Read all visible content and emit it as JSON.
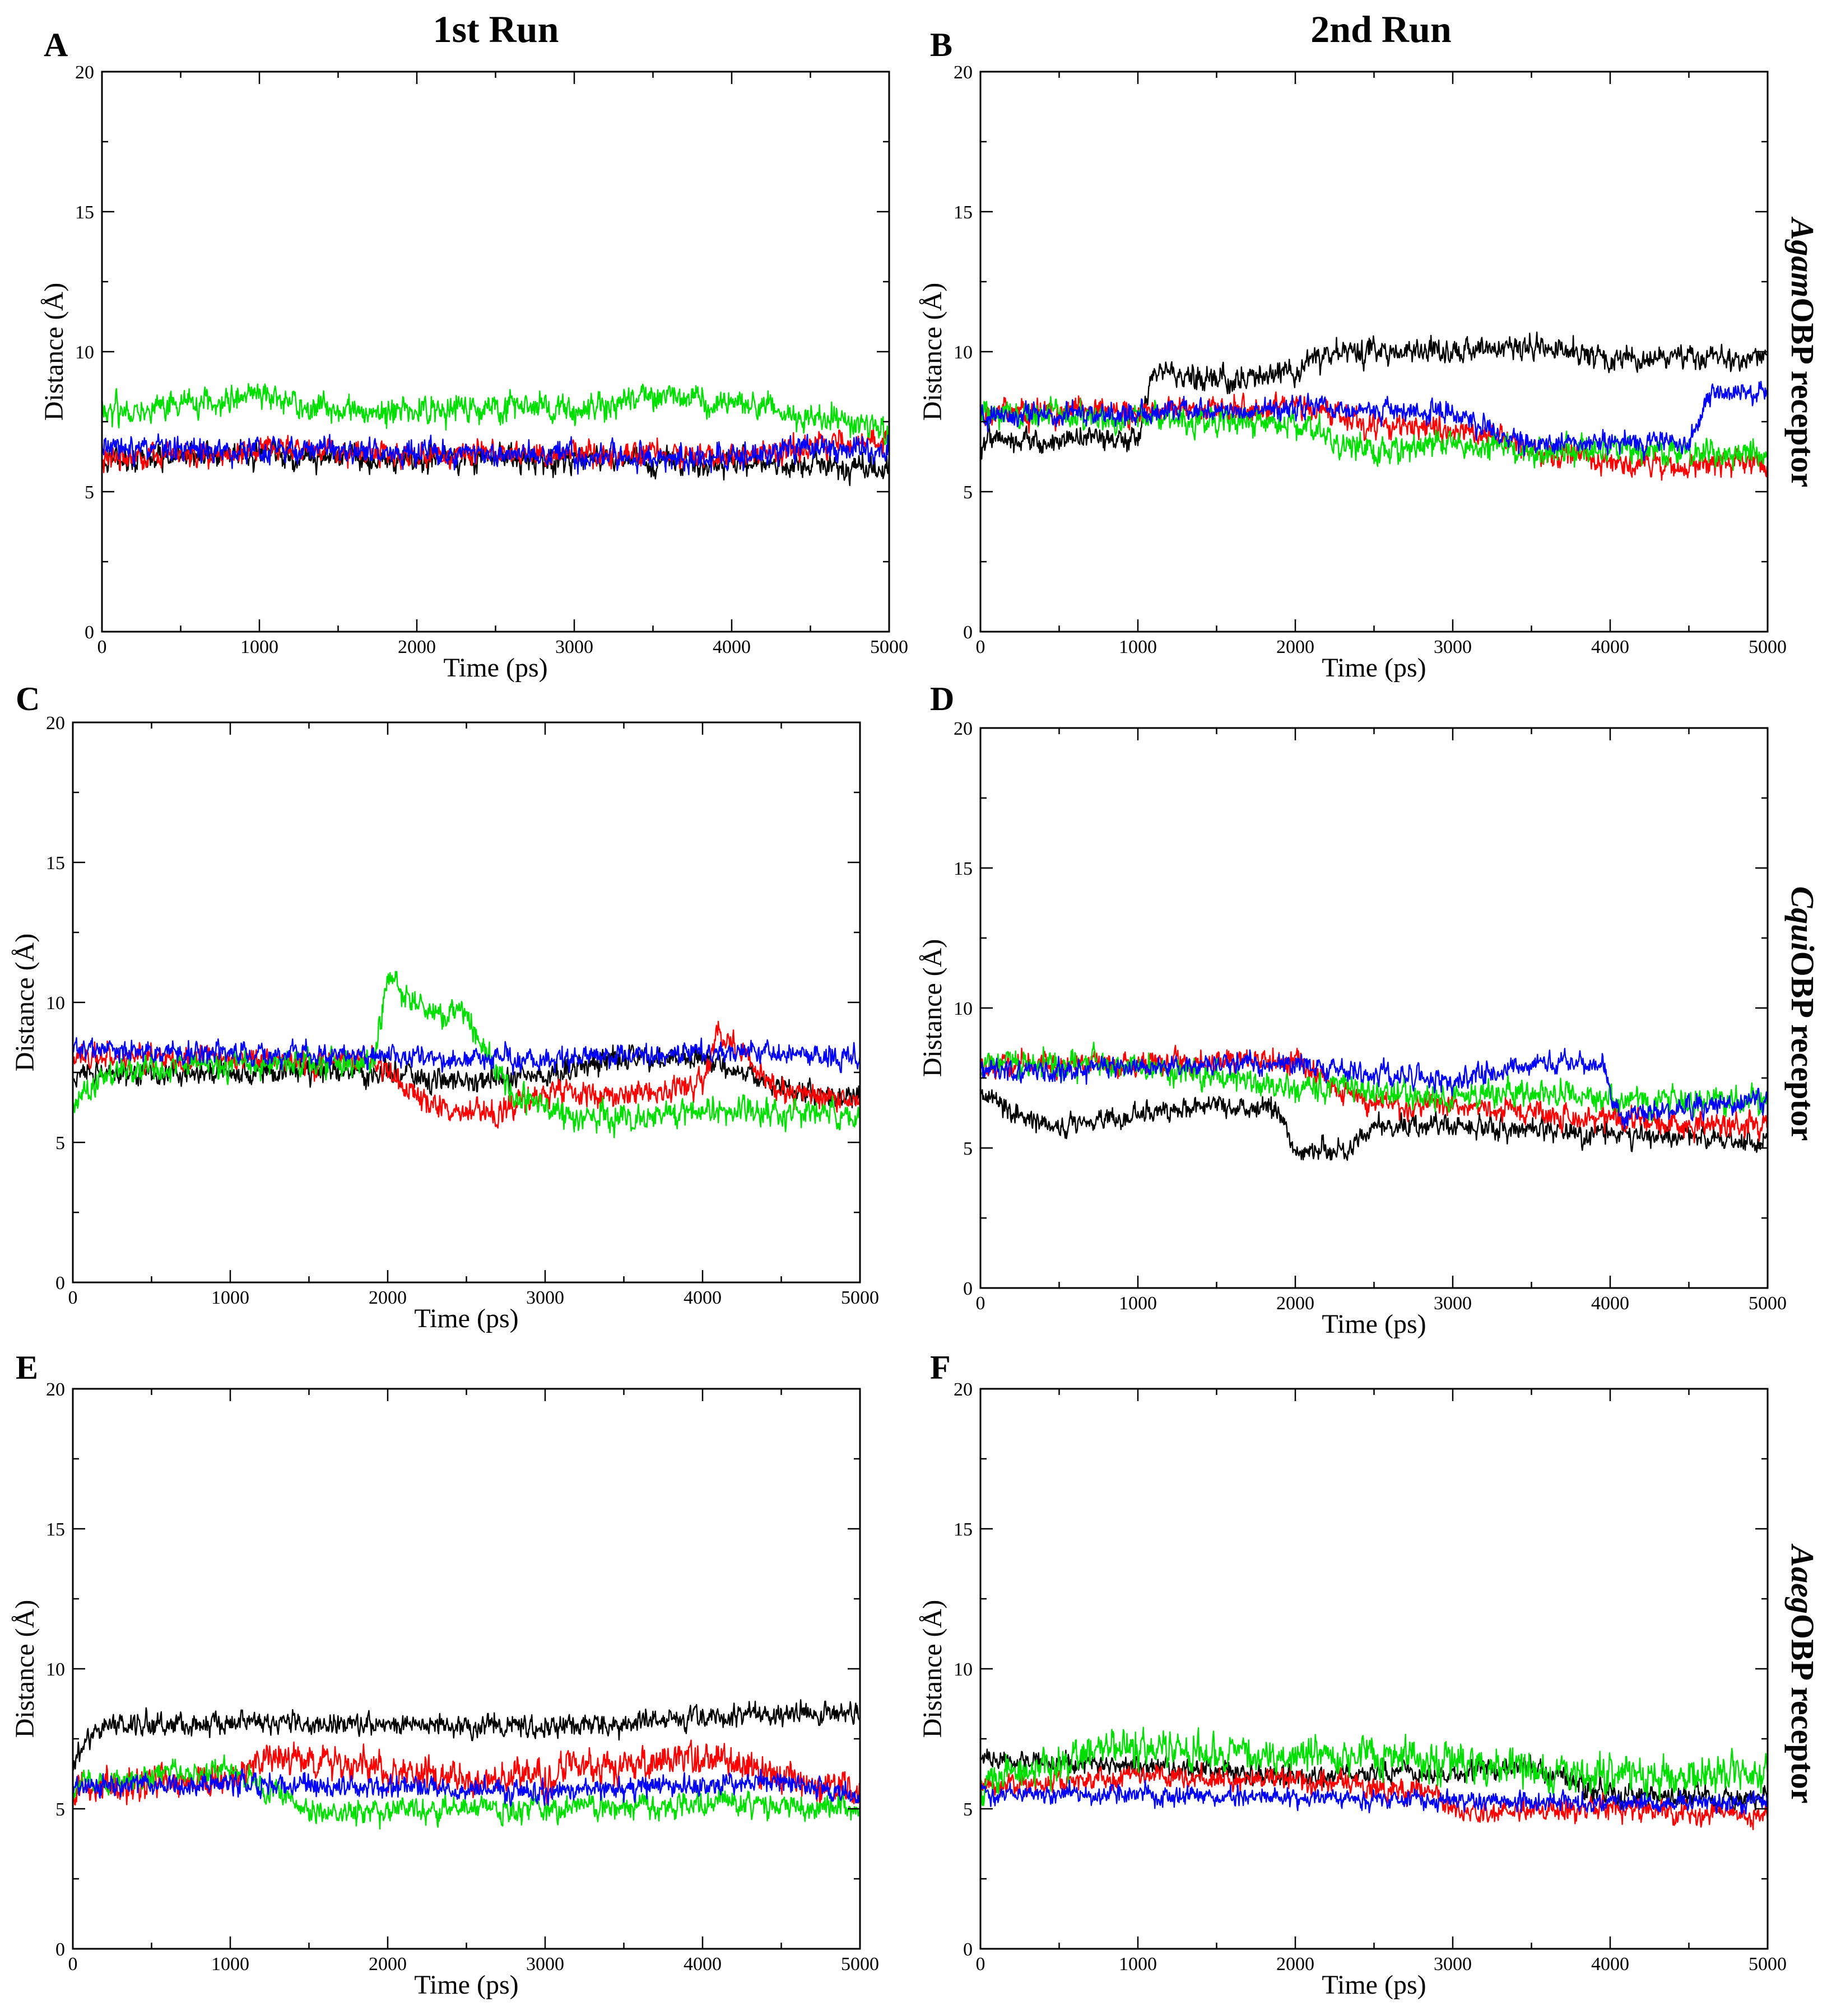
{
  "figure": {
    "col_titles": [
      "1st Run",
      "2nd Run"
    ],
    "row_labels": [
      {
        "italic": "Agam",
        "rest": "OBP receptor"
      },
      {
        "italic": "Cqui",
        "rest": "OBP receptor"
      },
      {
        "italic": "Aaeg",
        "rest": "OBP receptor"
      }
    ],
    "series_colors": {
      "black": "#000000",
      "red": "#ff0000",
      "green": "#00e000",
      "blue": "#0000ff"
    }
  },
  "chart_data": [
    {
      "panel": "A",
      "type": "line",
      "xlabel": "Time (ps)",
      "ylabel": "Distance (Å)",
      "xlim": [
        0,
        5000
      ],
      "ylim": [
        0,
        20
      ],
      "xticks": [
        0,
        1000,
        2000,
        3000,
        4000,
        5000
      ],
      "yticks": [
        0,
        5,
        10,
        15,
        20
      ],
      "series": [
        {
          "color": "black",
          "noise": 0.45,
          "x": [
            0,
            1000,
            2000,
            3000,
            4000,
            4500,
            5000
          ],
          "y": [
            6.2,
            6.3,
            6.1,
            6.2,
            6.0,
            5.9,
            5.8
          ]
        },
        {
          "color": "red",
          "noise": 0.45,
          "x": [
            0,
            1000,
            2000,
            3000,
            4000,
            4500,
            5000
          ],
          "y": [
            6.1,
            6.5,
            6.3,
            6.4,
            6.2,
            6.6,
            6.8
          ]
        },
        {
          "color": "green",
          "noise": 0.5,
          "x": [
            0,
            500,
            1000,
            1500,
            2000,
            2500,
            3000,
            3500,
            4000,
            4500,
            5000
          ],
          "y": [
            7.8,
            8.2,
            8.4,
            7.8,
            7.9,
            8.1,
            7.9,
            8.4,
            8.1,
            7.8,
            7.2
          ]
        },
        {
          "color": "blue",
          "noise": 0.45,
          "x": [
            0,
            1000,
            2000,
            3000,
            4000,
            4500,
            5000
          ],
          "y": [
            6.6,
            6.5,
            6.4,
            6.3,
            6.2,
            6.6,
            6.4
          ]
        }
      ]
    },
    {
      "panel": "B",
      "type": "line",
      "xlabel": "Time (ps)",
      "ylabel": "Distance (Å)",
      "xlim": [
        0,
        5000
      ],
      "ylim": [
        0,
        20
      ],
      "xticks": [
        0,
        1000,
        2000,
        3000,
        4000,
        5000
      ],
      "yticks": [
        0,
        5,
        10,
        15,
        20
      ],
      "series": [
        {
          "color": "black",
          "noise": 0.45,
          "x": [
            0,
            1000,
            1100,
            1500,
            2000,
            2200,
            2500,
            3000,
            3500,
            4000,
            4500,
            5000
          ],
          "y": [
            6.8,
            6.9,
            9.4,
            9.0,
            9.2,
            10.0,
            10.0,
            10.0,
            10.2,
            9.8,
            9.8,
            9.8
          ]
        },
        {
          "color": "red",
          "noise": 0.45,
          "x": [
            0,
            1000,
            2000,
            2500,
            3000,
            3300,
            3500,
            4000,
            4500,
            5000
          ],
          "y": [
            7.8,
            7.9,
            8.0,
            7.4,
            7.2,
            7.0,
            6.4,
            6.0,
            5.9,
            6.0
          ]
        },
        {
          "color": "green",
          "noise": 0.5,
          "x": [
            0,
            1000,
            2000,
            2500,
            3000,
            3500,
            4000,
            4500,
            5000
          ],
          "y": [
            7.8,
            7.6,
            7.4,
            6.4,
            6.8,
            6.4,
            6.6,
            6.4,
            6.3
          ]
        },
        {
          "color": "blue",
          "noise": 0.4,
          "x": [
            0,
            1000,
            2000,
            2500,
            3000,
            3500,
            4000,
            4500,
            4650,
            5000
          ],
          "y": [
            7.7,
            7.8,
            8.0,
            7.9,
            7.8,
            6.6,
            6.8,
            6.7,
            8.5,
            8.6
          ]
        }
      ]
    },
    {
      "panel": "C",
      "type": "line",
      "xlabel": "Time (ps)",
      "ylabel": "Distance (Å)",
      "xlim": [
        0,
        5000
      ],
      "ylim": [
        0,
        20
      ],
      "xticks": [
        0,
        1000,
        2000,
        3000,
        4000,
        5000
      ],
      "yticks": [
        0,
        5,
        10,
        15,
        20
      ],
      "series": [
        {
          "color": "black",
          "noise": 0.45,
          "x": [
            0,
            1000,
            2000,
            2500,
            3000,
            3500,
            4000,
            4500,
            5000
          ],
          "y": [
            7.4,
            7.5,
            7.5,
            7.2,
            7.4,
            8.0,
            8.0,
            7.0,
            6.5
          ]
        },
        {
          "color": "red",
          "noise": 0.45,
          "x": [
            0,
            1000,
            1900,
            2300,
            2700,
            3000,
            3500,
            4000,
            4100,
            4500,
            5000
          ],
          "y": [
            8.0,
            8.0,
            7.8,
            6.3,
            6.0,
            6.8,
            6.6,
            7.2,
            9.0,
            6.8,
            6.5
          ]
        },
        {
          "color": "green",
          "noise": 0.5,
          "x": [
            0,
            300,
            1000,
            1900,
            2000,
            2200,
            2500,
            2800,
            3300,
            4000,
            5000
          ],
          "y": [
            6.5,
            7.6,
            7.8,
            7.8,
            10.8,
            9.8,
            9.6,
            6.5,
            5.8,
            6.2,
            6.0
          ]
        },
        {
          "color": "blue",
          "noise": 0.4,
          "x": [
            0,
            1000,
            2000,
            3000,
            4000,
            5000
          ],
          "y": [
            8.3,
            8.2,
            8.1,
            8.0,
            8.2,
            8.0
          ]
        }
      ]
    },
    {
      "panel": "D",
      "type": "line",
      "xlabel": "Time (ps)",
      "ylabel": "Distance (Å)",
      "xlim": [
        0,
        5000
      ],
      "ylim": [
        0,
        20
      ],
      "xticks": [
        0,
        1000,
        2000,
        3000,
        4000,
        5000
      ],
      "yticks": [
        0,
        5,
        10,
        15,
        20
      ],
      "series": [
        {
          "color": "black",
          "noise": 0.4,
          "x": [
            0,
            300,
            500,
            1000,
            1500,
            1900,
            2000,
            2350,
            2500,
            3000,
            4000,
            5000
          ],
          "y": [
            7.0,
            6.0,
            5.7,
            6.2,
            6.5,
            6.4,
            4.9,
            5.0,
            5.8,
            5.8,
            5.5,
            5.2
          ]
        },
        {
          "color": "red",
          "noise": 0.45,
          "x": [
            0,
            1000,
            2000,
            2300,
            2500,
            3000,
            3500,
            4000,
            4500,
            5000
          ],
          "y": [
            8.0,
            8.0,
            8.2,
            7.0,
            6.5,
            6.6,
            6.2,
            6.0,
            5.8,
            5.8
          ]
        },
        {
          "color": "green",
          "noise": 0.5,
          "x": [
            0,
            1000,
            2000,
            3000,
            3500,
            4000,
            4500,
            5000
          ],
          "y": [
            8.0,
            7.9,
            7.2,
            6.8,
            7.0,
            6.8,
            6.6,
            6.8
          ]
        },
        {
          "color": "blue",
          "noise": 0.4,
          "x": [
            0,
            1000,
            2000,
            2500,
            3000,
            3500,
            3950,
            4050,
            4500,
            5000
          ],
          "y": [
            7.7,
            7.9,
            8.0,
            7.7,
            7.4,
            8.0,
            8.0,
            6.2,
            6.5,
            6.6
          ]
        }
      ]
    },
    {
      "panel": "E",
      "type": "line",
      "xlabel": "Time (ps)",
      "ylabel": "Distance (Å)",
      "xlim": [
        0,
        5000
      ],
      "ylim": [
        0,
        20
      ],
      "xticks": [
        0,
        1000,
        2000,
        3000,
        4000,
        5000
      ],
      "yticks": [
        0,
        5,
        10,
        15,
        20
      ],
      "series": [
        {
          "color": "black",
          "noise": 0.4,
          "x": [
            0,
            200,
            1000,
            2000,
            3000,
            4000,
            5000
          ],
          "y": [
            6.8,
            8.0,
            8.1,
            8.0,
            7.9,
            8.3,
            8.4
          ]
        },
        {
          "color": "red",
          "noise": 0.6,
          "x": [
            0,
            1000,
            1300,
            2000,
            2500,
            3000,
            3500,
            4000,
            4500,
            5000
          ],
          "y": [
            5.8,
            6.0,
            7.0,
            6.4,
            6.0,
            6.2,
            6.5,
            7.0,
            6.2,
            5.6
          ]
        },
        {
          "color": "green",
          "noise": 0.45,
          "x": [
            0,
            500,
            1000,
            1500,
            2000,
            3000,
            4000,
            5000
          ],
          "y": [
            5.8,
            6.2,
            6.4,
            5.0,
            5.0,
            5.0,
            5.2,
            5.0
          ]
        },
        {
          "color": "blue",
          "noise": 0.4,
          "x": [
            0,
            1000,
            2000,
            3000,
            4000,
            4500,
            5000
          ],
          "y": [
            5.8,
            5.9,
            5.8,
            5.6,
            5.9,
            6.0,
            5.4
          ]
        }
      ]
    },
    {
      "panel": "F",
      "type": "line",
      "xlabel": "Time (ps)",
      "ylabel": "Distance (Å)",
      "xlim": [
        0,
        5000
      ],
      "ylim": [
        0,
        20
      ],
      "xticks": [
        0,
        1000,
        2000,
        3000,
        4000,
        5000
      ],
      "yticks": [
        0,
        5,
        10,
        15,
        20
      ],
      "series": [
        {
          "color": "black",
          "noise": 0.4,
          "x": [
            0,
            1000,
            2000,
            3000,
            3500,
            4000,
            5000
          ],
          "y": [
            6.8,
            6.5,
            6.2,
            6.3,
            6.5,
            5.5,
            5.4
          ]
        },
        {
          "color": "red",
          "noise": 0.4,
          "x": [
            0,
            1000,
            2000,
            2900,
            3000,
            4000,
            5000
          ],
          "y": [
            5.8,
            6.2,
            6.0,
            5.6,
            4.9,
            5.0,
            4.8
          ]
        },
        {
          "color": "green",
          "noise": 0.65,
          "x": [
            0,
            800,
            1500,
            2000,
            3000,
            4000,
            5000
          ],
          "y": [
            5.8,
            7.2,
            7.0,
            7.0,
            6.6,
            6.2,
            6.2
          ]
        },
        {
          "color": "blue",
          "noise": 0.35,
          "x": [
            0,
            1000,
            2000,
            3000,
            4000,
            5000
          ],
          "y": [
            5.5,
            5.5,
            5.4,
            5.3,
            5.2,
            5.2
          ]
        }
      ]
    }
  ]
}
